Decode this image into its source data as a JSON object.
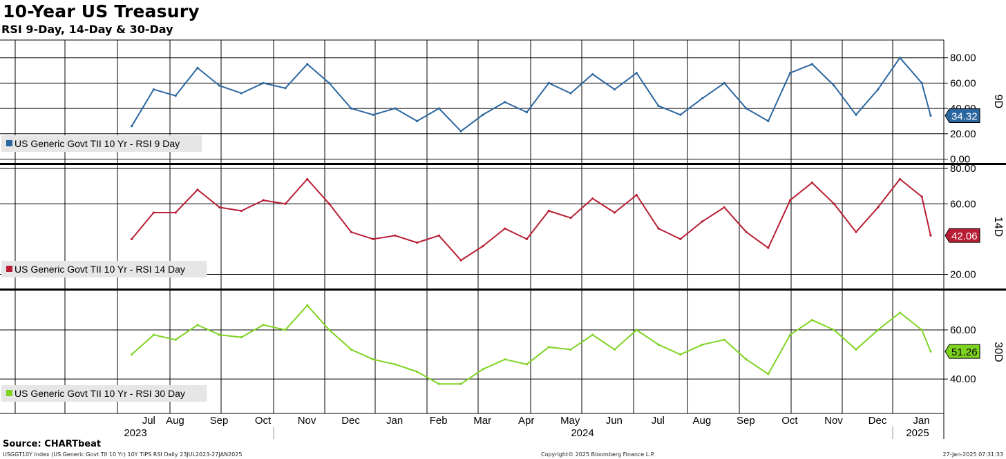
{
  "title": "10-Year US Treasury",
  "subtitle": "RSI 9-Day, 14-Day & 30-Day",
  "source": "Source: CHARTbeat",
  "footer": {
    "left": "USGGT10Y Index (US Generic Govt TII 10 Yr) 10Y TIPS RSI  Daily 23JUL2023-27JAN2025",
    "center": "Copyright© 2025 Bloomberg Finance L.P.",
    "right": "27-Jan-2025 07:31:33"
  },
  "colors": {
    "rsi9": "#2a66a0",
    "rsi14": "#b81d33",
    "rsi30": "#7ed321",
    "grid": "#000000",
    "legend_bg": "#e6e6e6"
  },
  "chart_data": [
    {
      "type": "line",
      "name": "US Generic Govt TII 10 Yr - RSI 9 Day",
      "side_label": "9D",
      "last_value": "34.32",
      "ylim": [
        -3,
        94
      ],
      "yticks": [
        "80.00",
        "60.00",
        "40.00",
        "20.00",
        "0.00"
      ],
      "ytick_values": [
        80,
        60,
        40,
        20,
        0
      ],
      "x": [
        0,
        0.5,
        1,
        1.5,
        2,
        2.5,
        3,
        3.5,
        4,
        4.5,
        5,
        5.5,
        6,
        6.5,
        7,
        7.5,
        8,
        8.5,
        9,
        9.5,
        10,
        10.5,
        11,
        11.5,
        12,
        12.5,
        13,
        13.5,
        14,
        14.5,
        15,
        15.5,
        16,
        16.5,
        17,
        17.5,
        18,
        18.2
      ],
      "values": [
        26,
        55,
        50,
        72,
        58,
        52,
        60,
        56,
        75,
        60,
        40,
        35,
        40,
        30,
        40,
        22,
        35,
        45,
        37,
        60,
        52,
        67,
        55,
        68,
        42,
        35,
        48,
        60,
        40,
        30,
        68,
        75,
        58,
        35,
        55,
        80,
        60,
        34.32
      ]
    },
    {
      "type": "line",
      "name": "US Generic Govt TII 10 Yr - RSI 14 Day",
      "side_label": "14D",
      "last_value": "42.06",
      "ylim": [
        12,
        82
      ],
      "yticks": [
        "80.00",
        "60.00",
        "20.00"
      ],
      "ytick_values": [
        80,
        60,
        20
      ],
      "x": [
        0,
        0.5,
        1,
        1.5,
        2,
        2.5,
        3,
        3.5,
        4,
        4.5,
        5,
        5.5,
        6,
        6.5,
        7,
        7.5,
        8,
        8.5,
        9,
        9.5,
        10,
        10.5,
        11,
        11.5,
        12,
        12.5,
        13,
        13.5,
        14,
        14.5,
        15,
        15.5,
        16,
        16.5,
        17,
        17.5,
        18,
        18.2
      ],
      "values": [
        40,
        55,
        55,
        68,
        58,
        56,
        62,
        60,
        74,
        60,
        44,
        40,
        42,
        38,
        42,
        28,
        36,
        46,
        40,
        56,
        52,
        63,
        55,
        65,
        46,
        40,
        50,
        58,
        44,
        35,
        62,
        72,
        60,
        44,
        58,
        74,
        64,
        42.06
      ]
    },
    {
      "type": "line",
      "name": "US Generic Govt TII 10 Yr - RSI 30 Day",
      "side_label": "30D",
      "last_value": "51.26",
      "ylim": [
        26,
        76
      ],
      "yticks": [
        "60.00",
        "40.00"
      ],
      "ytick_values": [
        60,
        40
      ],
      "x": [
        0,
        0.5,
        1,
        1.5,
        2,
        2.5,
        3,
        3.5,
        4,
        4.5,
        5,
        5.5,
        6,
        6.5,
        7,
        7.5,
        8,
        8.5,
        9,
        9.5,
        10,
        10.5,
        11,
        11.5,
        12,
        12.5,
        13,
        13.5,
        14,
        14.5,
        15,
        15.5,
        16,
        16.5,
        17,
        17.5,
        18,
        18.2
      ],
      "values": [
        50,
        58,
        56,
        62,
        58,
        57,
        62,
        60,
        70,
        60,
        52,
        48,
        46,
        43,
        38,
        38,
        44,
        48,
        46,
        53,
        52,
        58,
        52,
        60,
        54,
        50,
        54,
        56,
        48,
        42,
        58,
        64,
        60,
        52,
        60,
        67,
        60,
        51.26
      ]
    }
  ],
  "x_axis": {
    "months": [
      "Jul",
      "Aug",
      "Sep",
      "Oct",
      "Nov",
      "Dec",
      "Jan",
      "Feb",
      "Mar",
      "Apr",
      "May",
      "Jun",
      "Jul",
      "Aug",
      "Sep",
      "Oct",
      "Nov",
      "Dec",
      "Jan"
    ],
    "month_positions": [
      0.2,
      0.8,
      1.8,
      2.8,
      3.8,
      4.8,
      5.8,
      6.8,
      7.8,
      8.8,
      9.8,
      10.8,
      11.8,
      12.8,
      13.8,
      14.8,
      15.8,
      16.8,
      17.8
    ],
    "years": [
      "2023",
      "2024",
      "2025"
    ],
    "year_positions": [
      2.6,
      11.3,
      17.85
    ]
  }
}
